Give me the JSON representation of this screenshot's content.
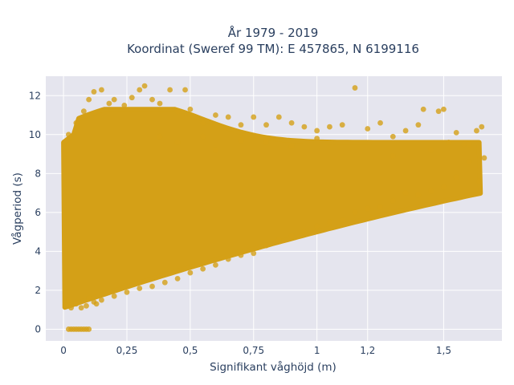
{
  "chart_data": {
    "type": "scatter",
    "title_line1": "År 1979 - 2019",
    "title_line2": "Koordinat (Sweref 99 TM): E 457865, N 6199116",
    "xlabel": "Signifikant våghöjd (m)",
    "ylabel": "Vågperiod (s)",
    "xlim": [
      -0.07,
      1.73
    ],
    "ylim": [
      -0.6,
      13.0
    ],
    "x_ticks": [
      {
        "value": 0,
        "label": "0"
      },
      {
        "value": 0.25,
        "label": "0,25"
      },
      {
        "value": 0.5,
        "label": "0,5"
      },
      {
        "value": 0.75,
        "label": "0,75"
      },
      {
        "value": 1,
        "label": "1"
      },
      {
        "value": 1.2,
        "label": "1,2"
      },
      {
        "value": 1.5,
        "label": "1,5"
      }
    ],
    "y_ticks": [
      {
        "value": 0,
        "label": "0"
      },
      {
        "value": 2,
        "label": "2"
      },
      {
        "value": 4,
        "label": "4"
      },
      {
        "value": 6,
        "label": "6"
      },
      {
        "value": 8,
        "label": "8"
      },
      {
        "value": 10,
        "label": "10"
      },
      {
        "value": 12,
        "label": "12"
      }
    ],
    "grid": true,
    "marker_color": "#d4a017",
    "background_color": "#e5e5ee",
    "points": [
      [
        0.02,
        0
      ],
      [
        0.03,
        0
      ],
      [
        0.04,
        0
      ],
      [
        0.05,
        0
      ],
      [
        0.06,
        0
      ],
      [
        0.07,
        0
      ],
      [
        0.08,
        0
      ],
      [
        0.09,
        0
      ],
      [
        0.1,
        0
      ],
      [
        0.01,
        1.2
      ],
      [
        0.02,
        1.5
      ],
      [
        0.03,
        1.1
      ],
      [
        0.05,
        1.3
      ],
      [
        0.07,
        1.1
      ],
      [
        0.09,
        1.2
      ],
      [
        0.1,
        1.6
      ],
      [
        0.12,
        1.4
      ],
      [
        0.02,
        10
      ],
      [
        0.05,
        10.6
      ],
      [
        0.08,
        11.2
      ],
      [
        0.1,
        11.8
      ],
      [
        0.12,
        12.2
      ],
      [
        0.15,
        12.3
      ],
      [
        0.18,
        11.6
      ],
      [
        0.2,
        11.8
      ],
      [
        0.24,
        11.5
      ],
      [
        0.27,
        11.9
      ],
      [
        0.3,
        12.3
      ],
      [
        0.32,
        12.5
      ],
      [
        0.35,
        11.8
      ],
      [
        0.38,
        11.6
      ],
      [
        0.42,
        12.3
      ],
      [
        0.45,
        11.2
      ],
      [
        0.5,
        11.3
      ],
      [
        0.55,
        10.6
      ],
      [
        0.6,
        11
      ],
      [
        0.65,
        10.9
      ],
      [
        0.7,
        10.5
      ],
      [
        0.75,
        10.9
      ],
      [
        0.8,
        10.5
      ],
      [
        0.85,
        10.9
      ],
      [
        0.9,
        10.6
      ],
      [
        0.95,
        10.4
      ],
      [
        1,
        10.2
      ],
      [
        1.05,
        10.4
      ],
      [
        1.1,
        10.5
      ],
      [
        1.15,
        12.4
      ],
      [
        1.2,
        10.3
      ],
      [
        1.25,
        10.6
      ],
      [
        1.3,
        9.9
      ],
      [
        1.35,
        10.2
      ],
      [
        1.4,
        10.5
      ],
      [
        1.42,
        11.3
      ],
      [
        1.48,
        11.2
      ],
      [
        1.5,
        11.3
      ],
      [
        1.55,
        10.1
      ],
      [
        1.6,
        9.5
      ],
      [
        1.63,
        10.2
      ],
      [
        1.65,
        10.4
      ],
      [
        1.66,
        8.8
      ],
      [
        1.64,
        7.6
      ],
      [
        1.6,
        8.6
      ],
      [
        1.55,
        7.8
      ],
      [
        1.5,
        7.3
      ],
      [
        1.45,
        7.1
      ],
      [
        1.4,
        6.9
      ],
      [
        1.35,
        7
      ],
      [
        1.3,
        6.6
      ],
      [
        1.25,
        6.3
      ],
      [
        1.2,
        6.2
      ],
      [
        1.15,
        6
      ],
      [
        1.1,
        5.6
      ],
      [
        1.05,
        5.5
      ],
      [
        1,
        5.3
      ],
      [
        0.95,
        5
      ],
      [
        0.9,
        4.8
      ],
      [
        0.85,
        4.6
      ],
      [
        0.8,
        4.3
      ],
      [
        0.75,
        3.9
      ],
      [
        0.7,
        3.8
      ],
      [
        0.65,
        3.6
      ],
      [
        0.6,
        3.3
      ],
      [
        0.55,
        3.1
      ],
      [
        0.5,
        2.9
      ],
      [
        0.45,
        2.6
      ],
      [
        0.4,
        2.4
      ],
      [
        0.35,
        2.2
      ],
      [
        0.3,
        2.1
      ],
      [
        0.25,
        1.9
      ],
      [
        0.2,
        1.7
      ],
      [
        0.15,
        1.5
      ],
      [
        0.13,
        1.3
      ],
      [
        0.45,
        9.6
      ],
      [
        0.6,
        9.2
      ],
      [
        0.8,
        9.6
      ],
      [
        1.0,
        9.8
      ],
      [
        0.38,
        9.9
      ],
      [
        1.3,
        8.9
      ],
      [
        1.45,
        9.2
      ],
      [
        1.52,
        9.6
      ],
      [
        1.58,
        9.5
      ],
      [
        0.9,
        9.4
      ],
      [
        0.7,
        9.7
      ],
      [
        0.55,
        9.9
      ],
      [
        0.48,
        12.3
      ]
    ]
  }
}
